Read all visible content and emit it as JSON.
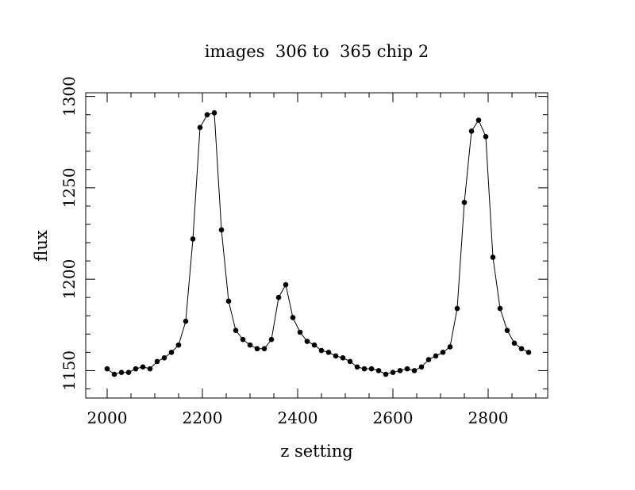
{
  "chart_data": {
    "type": "line",
    "title": "images  306 to  365 chip 2",
    "xlabel": "z setting",
    "ylabel": "flux",
    "xlim": [
      1955,
      2925
    ],
    "ylim": [
      1135,
      1302
    ],
    "x_ticks": [
      2000,
      2200,
      2400,
      2600,
      2800
    ],
    "y_ticks": [
      1150,
      1200,
      1250,
      1300
    ],
    "grid": false,
    "series": [
      {
        "marker": "circle",
        "color": "#000000",
        "x": [
          2000,
          2015,
          2030,
          2045,
          2060,
          2075,
          2090,
          2105,
          2120,
          2135,
          2150,
          2165,
          2180,
          2195,
          2210,
          2225,
          2240,
          2255,
          2270,
          2285,
          2300,
          2315,
          2330,
          2345,
          2360,
          2375,
          2390,
          2405,
          2420,
          2435,
          2450,
          2465,
          2480,
          2495,
          2510,
          2525,
          2540,
          2555,
          2570,
          2585,
          2600,
          2615,
          2630,
          2645,
          2660,
          2675,
          2690,
          2705,
          2720,
          2735,
          2750,
          2765,
          2780,
          2795,
          2810,
          2825,
          2840,
          2855,
          2870,
          2885
        ],
        "y": [
          1151,
          1148,
          1149,
          1149,
          1151,
          1152,
          1151,
          1155,
          1157,
          1160,
          1164,
          1177,
          1222,
          1283,
          1290,
          1291,
          1227,
          1188,
          1172,
          1167,
          1164,
          1162,
          1162,
          1167,
          1190,
          1197,
          1179,
          1171,
          1166,
          1164,
          1161,
          1160,
          1158,
          1157,
          1155,
          1152,
          1151,
          1151,
          1150,
          1148,
          1149,
          1150,
          1151,
          1150,
          1152,
          1156,
          1158,
          1160,
          1163,
          1184,
          1242,
          1281,
          1287,
          1278,
          1212,
          1184,
          1172,
          1165,
          1162,
          1160
        ]
      }
    ]
  }
}
